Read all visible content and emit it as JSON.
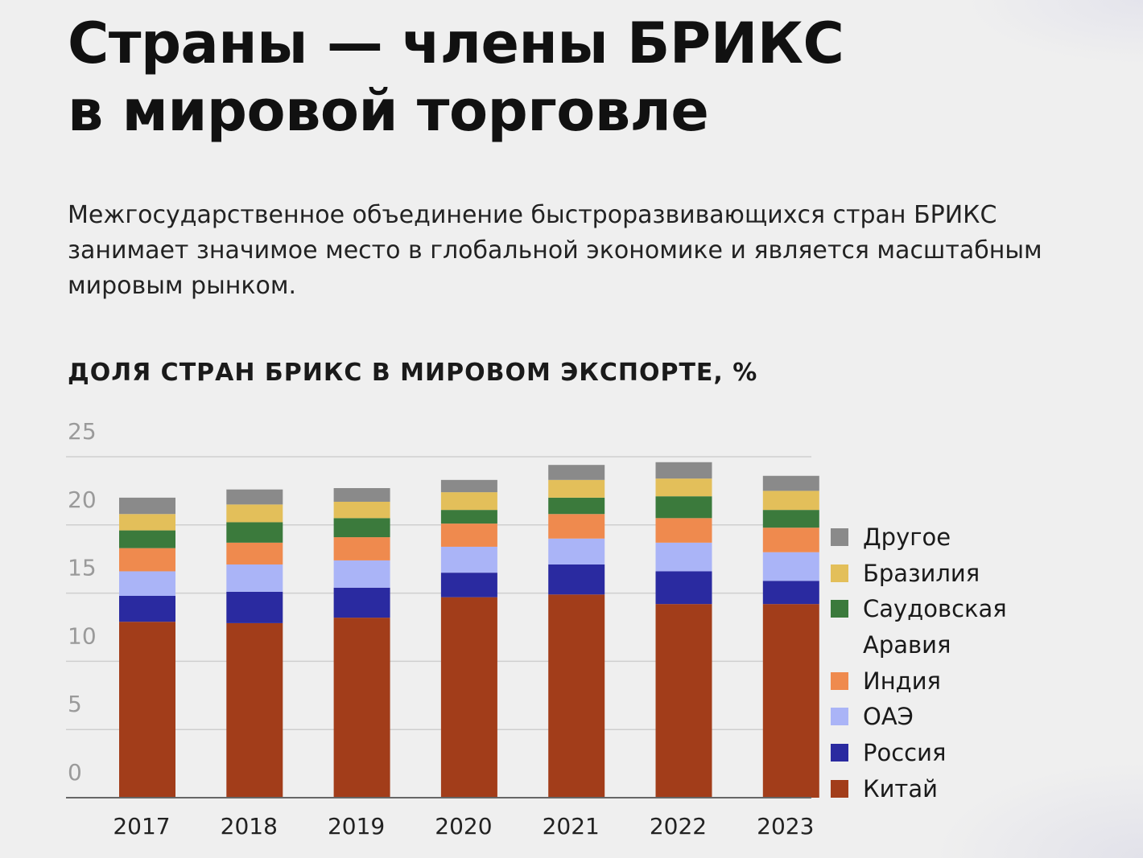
{
  "page": {
    "title_line1": "Страны — члены БРИКС",
    "title_line2": "в мировой торговле",
    "lead": "Межгосударственное объединение быстроразвивающихся стран БРИКС занимает значимое место в глобальной экономике и является масштабным мировым рынком."
  },
  "chart_data": {
    "type": "bar",
    "stacked": true,
    "title": "ДОЛЯ СТРАН БРИКС В МИРОВОМ ЭКСПОРТЕ, %",
    "categories": [
      "2017",
      "2018",
      "2019",
      "2020",
      "2021",
      "2022",
      "2023"
    ],
    "ylim": [
      0,
      25
    ],
    "yticks": [
      "25",
      "20",
      "15",
      "10",
      "5",
      "0"
    ],
    "grid": true,
    "legend_position": "right",
    "series": [
      {
        "name": "Китай",
        "color": "#a23d1a",
        "values": [
          12.9,
          12.8,
          13.2,
          14.7,
          14.9,
          14.2,
          14.2
        ]
      },
      {
        "name": "Россия",
        "color": "#2a2aa0",
        "values": [
          1.9,
          2.3,
          2.2,
          1.8,
          2.2,
          2.4,
          1.7
        ]
      },
      {
        "name": "ОАЭ",
        "color": "#aab4f7",
        "values": [
          1.8,
          2.0,
          2.0,
          1.9,
          1.9,
          2.1,
          2.1
        ]
      },
      {
        "name": "Индия",
        "color": "#ef8a4e",
        "values": [
          1.7,
          1.6,
          1.7,
          1.7,
          1.8,
          1.8,
          1.8
        ]
      },
      {
        "name": "Саудовская Аравия",
        "color": "#3b7a3c",
        "values": [
          1.3,
          1.5,
          1.4,
          1.0,
          1.2,
          1.6,
          1.3
        ]
      },
      {
        "name": "Бразилия",
        "color": "#e3bf5a",
        "values": [
          1.2,
          1.3,
          1.2,
          1.3,
          1.3,
          1.3,
          1.4
        ]
      },
      {
        "name": "Другое",
        "color": "#8a8a8a",
        "values": [
          1.2,
          1.1,
          1.0,
          0.9,
          1.1,
          1.2,
          1.1
        ]
      }
    ]
  }
}
